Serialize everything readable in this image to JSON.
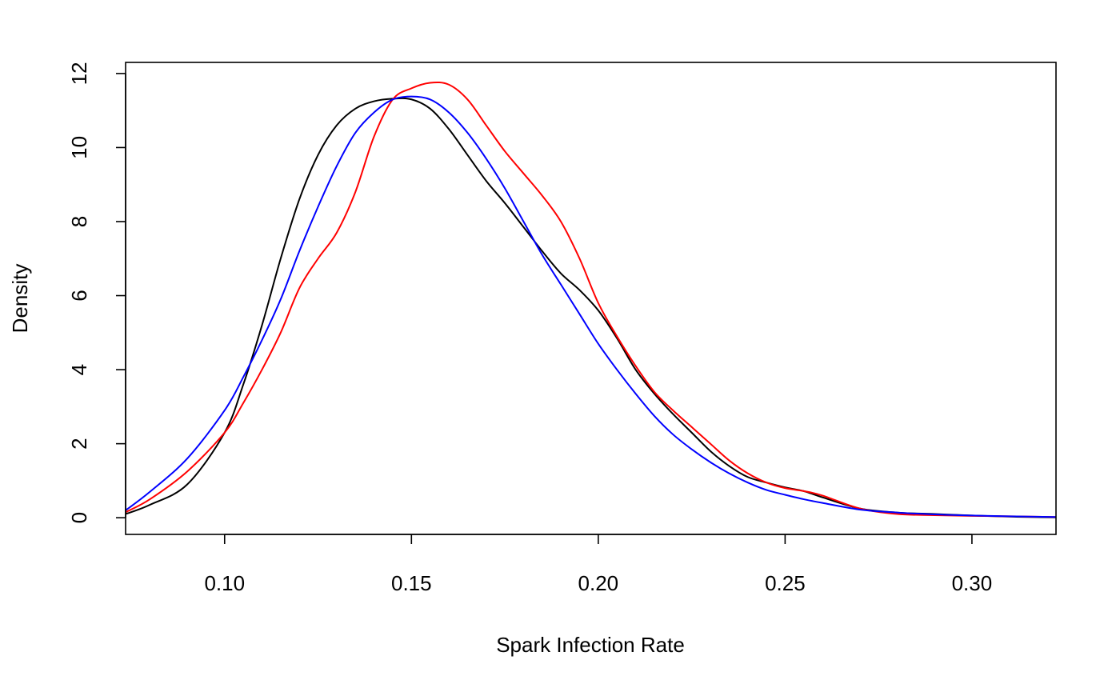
{
  "chart_data": {
    "type": "line",
    "title": "",
    "xlabel": "Spark Infection Rate",
    "ylabel": "Density",
    "xlim": [
      0.0735,
      0.3225
    ],
    "ylim": [
      -0.45,
      12.3
    ],
    "xticks": [
      0.1,
      0.15,
      0.2,
      0.25,
      0.3
    ],
    "xtick_labels": [
      "0.10",
      "0.15",
      "0.20",
      "0.25",
      "0.30"
    ],
    "yticks": [
      0,
      2,
      4,
      6,
      8,
      10,
      12
    ],
    "ytick_labels": [
      "0",
      "2",
      "4",
      "6",
      "8",
      "10",
      "12"
    ],
    "grid": false,
    "legend": "none",
    "series": [
      {
        "color": "#000000",
        "x": [
          0.0735,
          0.08,
          0.09,
          0.1,
          0.105,
          0.11,
          0.115,
          0.12,
          0.125,
          0.13,
          0.135,
          0.14,
          0.145,
          0.15,
          0.155,
          0.16,
          0.165,
          0.17,
          0.175,
          0.18,
          0.185,
          0.19,
          0.195,
          0.2,
          0.205,
          0.21,
          0.215,
          0.22,
          0.225,
          0.23,
          0.235,
          0.24,
          0.245,
          0.25,
          0.255,
          0.26,
          0.27,
          0.28,
          0.29,
          0.3,
          0.31,
          0.3225
        ],
        "y": [
          0.1,
          0.35,
          0.9,
          2.3,
          3.6,
          5.2,
          7.0,
          8.6,
          9.8,
          10.6,
          11.05,
          11.25,
          11.32,
          11.3,
          11.05,
          10.5,
          9.8,
          9.1,
          8.5,
          7.85,
          7.2,
          6.6,
          6.15,
          5.6,
          4.85,
          4.0,
          3.35,
          2.8,
          2.3,
          1.8,
          1.4,
          1.1,
          0.95,
          0.82,
          0.72,
          0.55,
          0.25,
          0.14,
          0.1,
          0.06,
          0.03,
          0.01
        ]
      },
      {
        "color": "#ff0000",
        "x": [
          0.0735,
          0.08,
          0.09,
          0.1,
          0.105,
          0.11,
          0.115,
          0.12,
          0.125,
          0.13,
          0.135,
          0.14,
          0.145,
          0.15,
          0.155,
          0.16,
          0.165,
          0.17,
          0.175,
          0.18,
          0.185,
          0.19,
          0.195,
          0.2,
          0.205,
          0.21,
          0.215,
          0.22,
          0.225,
          0.23,
          0.235,
          0.24,
          0.245,
          0.25,
          0.255,
          0.26,
          0.27,
          0.28,
          0.29,
          0.3,
          0.31,
          0.3225
        ],
        "y": [
          0.15,
          0.5,
          1.25,
          2.3,
          3.1,
          4.0,
          5.0,
          6.2,
          7.0,
          7.7,
          8.8,
          10.3,
          11.3,
          11.6,
          11.75,
          11.7,
          11.3,
          10.6,
          9.9,
          9.3,
          8.7,
          8.0,
          7.0,
          5.8,
          4.9,
          4.1,
          3.4,
          2.9,
          2.45,
          2.0,
          1.55,
          1.2,
          0.95,
          0.8,
          0.72,
          0.6,
          0.25,
          0.1,
          0.07,
          0.05,
          0.04,
          0.02
        ]
      },
      {
        "color": "#0000ff",
        "x": [
          0.0735,
          0.08,
          0.09,
          0.1,
          0.105,
          0.11,
          0.115,
          0.12,
          0.125,
          0.13,
          0.135,
          0.14,
          0.145,
          0.15,
          0.155,
          0.16,
          0.165,
          0.17,
          0.175,
          0.18,
          0.185,
          0.19,
          0.195,
          0.2,
          0.205,
          0.21,
          0.215,
          0.22,
          0.225,
          0.23,
          0.235,
          0.24,
          0.245,
          0.25,
          0.255,
          0.26,
          0.27,
          0.28,
          0.29,
          0.3,
          0.31,
          0.3225
        ],
        "y": [
          0.2,
          0.7,
          1.6,
          2.9,
          3.8,
          4.8,
          5.9,
          7.2,
          8.4,
          9.5,
          10.4,
          10.95,
          11.3,
          11.38,
          11.3,
          10.95,
          10.4,
          9.7,
          8.9,
          8.0,
          7.1,
          6.3,
          5.5,
          4.7,
          4.0,
          3.35,
          2.75,
          2.25,
          1.85,
          1.5,
          1.2,
          0.95,
          0.75,
          0.62,
          0.5,
          0.4,
          0.22,
          0.14,
          0.09,
          0.06,
          0.04,
          0.02
        ]
      }
    ]
  }
}
